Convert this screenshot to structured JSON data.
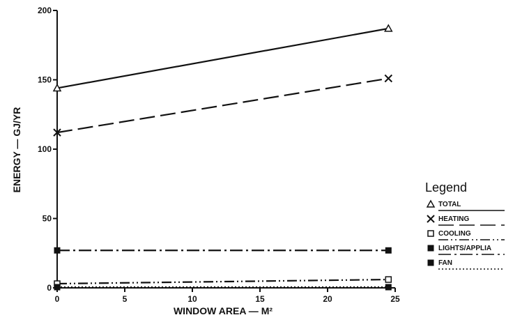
{
  "chart_data": {
    "type": "line",
    "xlabel": "WINDOW AREA — M²",
    "ylabel": "ENERGY — GJ/YR",
    "x": [
      0,
      24.5
    ],
    "xlim": [
      0,
      25
    ],
    "ylim": [
      0,
      200
    ],
    "xticks": [
      "0",
      "5",
      "10",
      "15",
      "20",
      "25"
    ],
    "yticks": [
      "0",
      "50",
      "100",
      "150",
      "200"
    ],
    "grid": false,
    "legend_title": "Legend",
    "legend_position": "right",
    "series": [
      {
        "name": "TOTAL",
        "values": [
          144,
          187
        ],
        "marker": "triangle",
        "dash": "solid"
      },
      {
        "name": "HEATING",
        "values": [
          112,
          151
        ],
        "marker": "x",
        "dash": "long-dash"
      },
      {
        "name": "COOLING",
        "values": [
          3,
          6
        ],
        "marker": "open-square",
        "dash": "dash-dot-dot"
      },
      {
        "name": "LIGHTS/APPLIA",
        "values": [
          27,
          27
        ],
        "marker": "filled-square",
        "dash": "dash-dot"
      },
      {
        "name": "FAN",
        "values": [
          0.5,
          0.5
        ],
        "marker": "filled-square",
        "dash": "dotted"
      }
    ]
  }
}
